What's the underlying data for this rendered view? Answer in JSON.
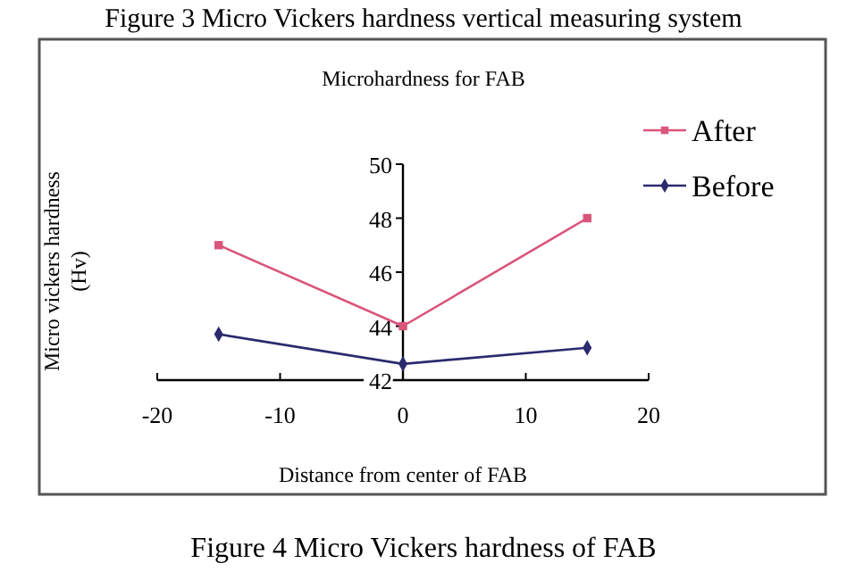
{
  "chart_data": {
    "type": "line",
    "title": "Microhardness for FAB",
    "xlabel": "Distance from center of FAB",
    "ylabel": "Micro vickers hardness\n(Hv)",
    "x": [
      -15,
      0,
      15
    ],
    "series": [
      {
        "name": "After",
        "color": "#d9557a",
        "marker": "square",
        "values": [
          47,
          44,
          48
        ]
      },
      {
        "name": "Before",
        "color": "#2b2a6e",
        "marker": "diamond",
        "values": [
          43.7,
          42.6,
          43.2
        ]
      }
    ],
    "xlim": [
      -20,
      20
    ],
    "xticks": [
      -20,
      -10,
      0,
      10,
      20
    ],
    "ylim": [
      42,
      50
    ],
    "yticks": [
      42,
      44,
      46,
      48,
      50
    ],
    "legend": "top right",
    "grid": false,
    "annotations": [
      "Figure 3 Micro Vickers hardness vertical measuring system",
      "Figure 4 Micro Vickers hardness of FAB"
    ]
  }
}
